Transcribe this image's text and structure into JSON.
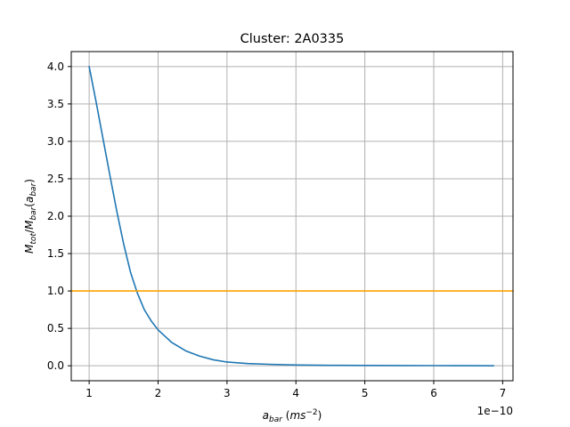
{
  "chart_data": {
    "type": "line",
    "title": "Cluster: 2A0335",
    "xlabel_html": "a_bar (ms^-2)",
    "ylabel_html": "M_tot/M_bar(a_bar)",
    "x_offset_text": "1e−10",
    "xlim": [
      0.74,
      7.15
    ],
    "ylim": [
      -0.2,
      4.2
    ],
    "grid": true,
    "x_ticks": [
      1,
      2,
      3,
      4,
      5,
      6,
      7
    ],
    "x_tick_labels": [
      "1",
      "2",
      "3",
      "4",
      "5",
      "6",
      "7"
    ],
    "y_ticks": [
      0.0,
      0.5,
      1.0,
      1.5,
      2.0,
      2.5,
      3.0,
      3.5,
      4.0
    ],
    "y_tick_labels": [
      "0.0",
      "0.5",
      "1.0",
      "1.5",
      "2.0",
      "2.5",
      "3.0",
      "3.5",
      "4.0"
    ],
    "series": [
      {
        "color": "#1f77b4",
        "x": [
          1.0,
          1.1,
          1.2,
          1.3,
          1.4,
          1.5,
          1.6,
          1.7,
          1.8,
          1.9,
          2.0,
          2.2,
          2.4,
          2.6,
          2.8,
          3.0,
          3.3,
          3.6,
          4.0,
          4.5,
          5.0,
          5.5,
          6.0,
          6.5,
          6.87
        ],
        "y": [
          4.0,
          3.53,
          3.04,
          2.55,
          2.07,
          1.63,
          1.25,
          0.97,
          0.75,
          0.6,
          0.48,
          0.31,
          0.2,
          0.13,
          0.08,
          0.05,
          0.03,
          0.02,
          0.01,
          0.006,
          0.004,
          0.003,
          0.002,
          0.001,
          0.0
        ]
      },
      {
        "color": "#ffa500",
        "x": [
          0.74,
          7.15
        ],
        "y": [
          1.0,
          1.0
        ]
      }
    ]
  }
}
